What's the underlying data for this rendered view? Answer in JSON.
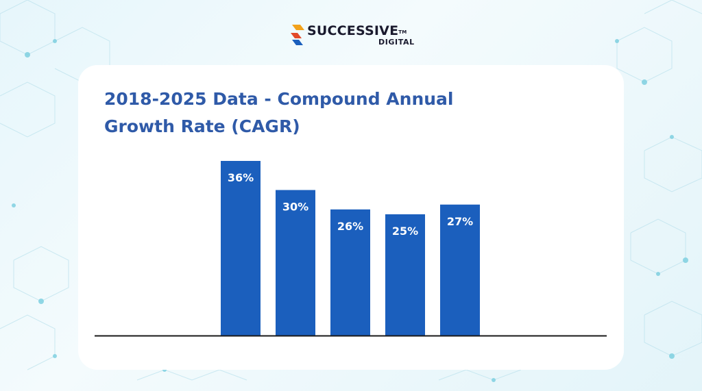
{
  "brand": {
    "name": "SUCCESSIVE",
    "tm": "TM",
    "sub": "DIGITAL"
  },
  "colors": {
    "bar": "#1b5fbd",
    "title": "#2f5aa8",
    "axis": "#1a1a1a",
    "label": "#ffffff"
  },
  "chart_data": {
    "type": "bar",
    "title": "2018-2025 Data - Compound Annual Growth Rate (CAGR)",
    "categories": [
      "",
      "",
      "",
      "",
      ""
    ],
    "values": [
      36,
      30,
      26,
      25,
      27
    ],
    "data_labels": [
      "36%",
      "30%",
      "26%",
      "25%",
      "27%"
    ],
    "xlabel": "",
    "ylabel": "",
    "ylim": [
      0,
      36
    ],
    "grid": false,
    "legend": "none"
  }
}
